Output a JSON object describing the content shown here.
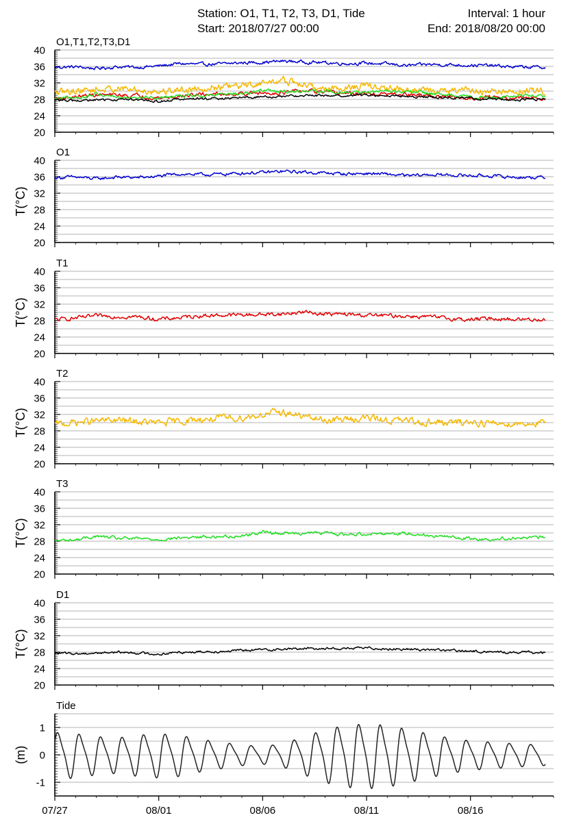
{
  "header": {
    "station": "Station: O1, T1, T2, T3, D1, Tide",
    "interval": "Interval: 1 hour",
    "start": "Start: 2018/07/27 00:00",
    "end": "End: 2018/08/20 00:00"
  },
  "colors": {
    "O1": "#0000cc",
    "T1": "#e00000",
    "T2": "#f5b800",
    "T3": "#22dd22",
    "D1": "#000000",
    "Tide": "#222222",
    "grid": "#9a9a9a"
  },
  "x_axis": {
    "tick_labels": [
      "07/27",
      "08/01",
      "08/06",
      "08/11",
      "08/16"
    ],
    "tick_days": [
      0,
      5,
      10,
      15,
      20
    ],
    "range_days": [
      0,
      24
    ]
  },
  "chart_data": [
    {
      "type": "line",
      "title": "O1,T1,T2,T3,D1",
      "ylabel": "",
      "ylim": [
        20,
        40
      ],
      "yticks": [
        "20",
        "24",
        "28",
        "32",
        "36",
        "40"
      ],
      "grid": "horizontal",
      "x": [
        0,
        1,
        2,
        3,
        4,
        5,
        6,
        7,
        8,
        9,
        10,
        11,
        12,
        13,
        14,
        15,
        16,
        17,
        18,
        19,
        20,
        21,
        22,
        23.5
      ],
      "series": [
        {
          "key": "O1",
          "values": [
            35.8,
            35.9,
            35.5,
            35.9,
            35.8,
            36.1,
            36.7,
            36.5,
            36.6,
            36.9,
            37.0,
            37.3,
            37.1,
            36.9,
            36.7,
            36.8,
            36.6,
            36.2,
            36.5,
            36.4,
            36.3,
            36.2,
            35.9,
            35.8
          ]
        },
        {
          "key": "T1",
          "values": [
            28.2,
            28.6,
            29.1,
            29.0,
            28.9,
            28.3,
            28.7,
            29.2,
            29.3,
            29.4,
            29.5,
            29.6,
            30.1,
            29.6,
            29.5,
            29.3,
            29.2,
            29.1,
            28.9,
            28.5,
            28.2,
            28.6,
            28.3,
            28.3
          ]
        },
        {
          "key": "T2",
          "values": [
            29.5,
            30.1,
            30.4,
            30.6,
            30.2,
            29.9,
            30.3,
            30.8,
            31.0,
            31.2,
            32.0,
            32.6,
            31.4,
            30.6,
            30.8,
            31.2,
            30.6,
            30.4,
            30.1,
            29.9,
            30.2,
            29.8,
            29.8,
            29.9
          ]
        },
        {
          "key": "T3",
          "values": [
            28.1,
            28.3,
            29.2,
            28.7,
            28.6,
            28.4,
            28.8,
            29.0,
            29.1,
            29.3,
            30.2,
            29.9,
            30.0,
            30.0,
            29.6,
            29.8,
            29.9,
            29.9,
            29.4,
            29.0,
            28.6,
            28.4,
            28.8,
            28.9
          ]
        },
        {
          "key": "D1",
          "values": [
            27.8,
            27.6,
            27.8,
            28.0,
            27.8,
            27.5,
            28.0,
            28.1,
            28.2,
            28.4,
            28.6,
            28.7,
            28.9,
            28.9,
            28.9,
            29.0,
            28.8,
            28.7,
            28.6,
            28.4,
            28.2,
            28.1,
            27.9,
            28.0
          ]
        }
      ]
    },
    {
      "type": "line",
      "title": "O1",
      "ylabel": "T(°C)",
      "ylim": [
        20,
        40
      ],
      "yticks": [
        "20",
        "24",
        "28",
        "32",
        "36",
        "40"
      ],
      "grid": "horizontal",
      "x": [
        0,
        1,
        2,
        3,
        4,
        5,
        6,
        7,
        8,
        9,
        10,
        11,
        12,
        13,
        14,
        15,
        16,
        17,
        18,
        19,
        20,
        21,
        22,
        23.5
      ],
      "series": [
        {
          "key": "O1",
          "values": [
            35.8,
            35.9,
            35.5,
            35.9,
            35.8,
            36.1,
            36.7,
            36.5,
            36.6,
            36.9,
            37.0,
            37.3,
            37.1,
            36.9,
            36.7,
            36.8,
            36.6,
            36.2,
            36.5,
            36.4,
            36.3,
            36.2,
            35.9,
            35.8
          ]
        }
      ]
    },
    {
      "type": "line",
      "title": "T1",
      "ylabel": "T(°C)",
      "ylim": [
        20,
        40
      ],
      "yticks": [
        "20",
        "24",
        "28",
        "32",
        "36",
        "40"
      ],
      "grid": "horizontal",
      "x": [
        0,
        1,
        2,
        3,
        4,
        5,
        6,
        7,
        8,
        9,
        10,
        11,
        12,
        13,
        14,
        15,
        16,
        17,
        18,
        19,
        20,
        21,
        22,
        23.5
      ],
      "series": [
        {
          "key": "T1",
          "values": [
            28.2,
            28.6,
            29.1,
            29.0,
            28.9,
            28.3,
            28.7,
            29.2,
            29.3,
            29.4,
            29.5,
            29.6,
            30.1,
            29.6,
            29.5,
            29.3,
            29.2,
            29.1,
            28.9,
            28.5,
            28.2,
            28.6,
            28.3,
            28.3
          ]
        }
      ]
    },
    {
      "type": "line",
      "title": "T2",
      "ylabel": "T(°C)",
      "ylim": [
        20,
        40
      ],
      "yticks": [
        "20",
        "24",
        "28",
        "32",
        "36",
        "40"
      ],
      "grid": "horizontal",
      "x": [
        0,
        1,
        2,
        3,
        4,
        5,
        6,
        7,
        8,
        9,
        10,
        11,
        12,
        13,
        14,
        15,
        16,
        17,
        18,
        19,
        20,
        21,
        22,
        23.5
      ],
      "series": [
        {
          "key": "T2",
          "values": [
            29.5,
            30.1,
            30.4,
            30.6,
            30.2,
            29.9,
            30.3,
            30.8,
            31.0,
            31.2,
            32.0,
            32.6,
            31.4,
            30.6,
            30.8,
            31.2,
            30.6,
            30.4,
            30.1,
            29.9,
            30.2,
            29.8,
            29.8,
            29.9
          ]
        }
      ]
    },
    {
      "type": "line",
      "title": "T3",
      "ylabel": "T(°C)",
      "ylim": [
        20,
        40
      ],
      "yticks": [
        "20",
        "24",
        "28",
        "32",
        "36",
        "40"
      ],
      "grid": "horizontal",
      "x": [
        0,
        1,
        2,
        3,
        4,
        5,
        6,
        7,
        8,
        9,
        10,
        11,
        12,
        13,
        14,
        15,
        16,
        17,
        18,
        19,
        20,
        21,
        22,
        23.5
      ],
      "series": [
        {
          "key": "T3",
          "values": [
            28.1,
            28.3,
            29.2,
            28.7,
            28.6,
            28.4,
            28.8,
            29.0,
            29.1,
            29.3,
            30.2,
            29.9,
            30.0,
            30.0,
            29.6,
            29.8,
            29.9,
            29.9,
            29.4,
            29.0,
            28.6,
            28.4,
            28.8,
            28.9
          ]
        }
      ]
    },
    {
      "type": "line",
      "title": "D1",
      "ylabel": "T(°C)",
      "ylim": [
        20,
        40
      ],
      "yticks": [
        "20",
        "24",
        "28",
        "32",
        "36",
        "40"
      ],
      "grid": "horizontal",
      "x": [
        0,
        1,
        2,
        3,
        4,
        5,
        6,
        7,
        8,
        9,
        10,
        11,
        12,
        13,
        14,
        15,
        16,
        17,
        18,
        19,
        20,
        21,
        22,
        23.5
      ],
      "series": [
        {
          "key": "D1",
          "values": [
            27.8,
            27.6,
            27.8,
            28.0,
            27.8,
            27.5,
            28.0,
            28.1,
            28.2,
            28.4,
            28.6,
            28.7,
            28.9,
            28.9,
            28.9,
            29.0,
            28.8,
            28.7,
            28.6,
            28.4,
            28.2,
            28.1,
            27.9,
            28.0
          ]
        }
      ]
    },
    {
      "type": "line",
      "title": "Tide",
      "ylabel": "(m)",
      "ylim": [
        -1.5,
        1.5
      ],
      "yticks": [
        "-1",
        "0",
        "1"
      ],
      "grid": "horizontal",
      "x": [
        0,
        1,
        2,
        3,
        4,
        5,
        6,
        7,
        8,
        9,
        10,
        11,
        12,
        13,
        14,
        15,
        16,
        17,
        18,
        19,
        20,
        21,
        22,
        23.5
      ],
      "series": [
        {
          "key": "Tide",
          "amplitude": [
            0.8,
            0.75,
            0.65,
            0.6,
            0.7,
            0.75,
            0.7,
            0.55,
            0.45,
            0.35,
            0.3,
            0.4,
            0.65,
            0.9,
            1.05,
            1.1,
            1.05,
            0.9,
            0.75,
            0.6,
            0.5,
            0.45,
            0.4,
            0.35
          ]
        }
      ]
    }
  ]
}
